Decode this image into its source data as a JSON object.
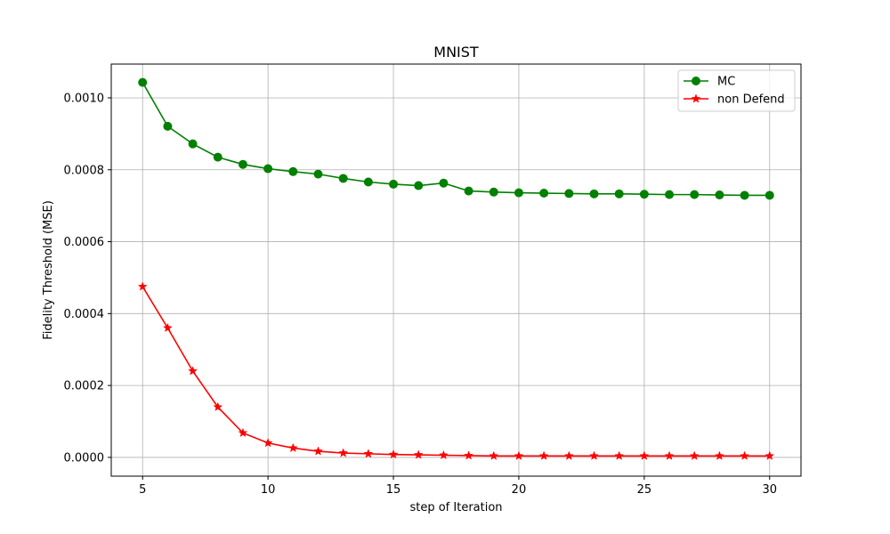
{
  "chart_data": {
    "type": "line",
    "title": "MNIST",
    "xlabel": "step of Iteration",
    "ylabel": "Fidelity Threshold (MSE)",
    "xlim": [
      3.75,
      31.25
    ],
    "ylim": [
      -5.22e-05,
      0.001094
    ],
    "x_ticks": [
      5,
      10,
      15,
      20,
      25,
      30
    ],
    "y_ticks": [
      0.0,
      0.0002,
      0.0004,
      0.0006,
      0.0008,
      0.001
    ],
    "y_tick_labels": [
      "0.0000",
      "0.0002",
      "0.0004",
      "0.0006",
      "0.0008",
      "0.0010"
    ],
    "grid": true,
    "legend_position": "top-right",
    "x": [
      5,
      6,
      7,
      8,
      9,
      10,
      11,
      12,
      13,
      14,
      15,
      16,
      17,
      18,
      19,
      20,
      21,
      22,
      23,
      24,
      25,
      26,
      27,
      28,
      29,
      30
    ],
    "series": [
      {
        "name": "MC",
        "color": "#008000",
        "marker": "circle",
        "values": [
          0.001043,
          0.000921,
          0.000872,
          0.000835,
          0.000815,
          0.000803,
          0.000795,
          0.000788,
          0.000776,
          0.000766,
          0.00076,
          0.000756,
          0.000763,
          0.000741,
          0.000738,
          0.000736,
          0.000735,
          0.000734,
          0.000733,
          0.000733,
          0.000732,
          0.000731,
          0.000731,
          0.00073,
          0.000729,
          0.000729
        ]
      },
      {
        "name": "non Defend",
        "color": "#ff0000",
        "marker": "star",
        "values": [
          0.000475,
          0.00036,
          0.00024,
          0.00014,
          6.8e-05,
          4e-05,
          2.6e-05,
          1.7e-05,
          1.2e-05,
          1e-05,
          8e-06,
          7e-06,
          6e-06,
          5e-06,
          4e-06,
          4e-06,
          4e-06,
          4e-06,
          4e-06,
          4e-06,
          4e-06,
          4e-06,
          4e-06,
          4e-06,
          4e-06,
          4e-06
        ]
      }
    ]
  }
}
